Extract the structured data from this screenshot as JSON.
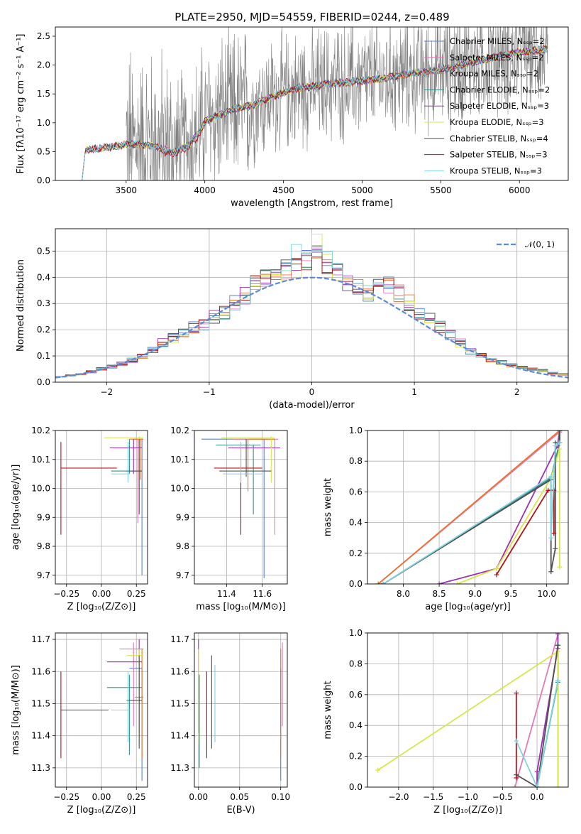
{
  "figure": {
    "title": "PLATE=2950, MJD=54559, FIBERID=0244, z=0.489"
  },
  "chart_data": [
    {
      "id": "spectrum",
      "type": "line",
      "xlabel": "wavelength [Angstrom, rest frame]",
      "ylabel": "Flux [fλ10⁻¹⁷ erg cm⁻² s⁻¹ A⁻¹]",
      "xlim": [
        3050,
        6310
      ],
      "ylim": [
        0,
        2.66
      ],
      "xticks": [
        3500,
        4000,
        4500,
        5000,
        5500,
        6000
      ],
      "yticks": [
        0.0,
        0.5,
        1.0,
        1.5,
        2.0,
        2.5
      ],
      "grid": false,
      "legend_position": "right",
      "legend": [
        {
          "text": "Chabrier MILES, Nₛₛₚ=2",
          "color": "#5b7fd0"
        },
        {
          "text": "Salpeter MILES, Nₛₛₚ=2",
          "color": "#e07ab8"
        },
        {
          "text": "Kroupa MILES, Nₛₛₚ=2",
          "color": "#e8752d"
        },
        {
          "text": "Chabrier ELODIE, Nₛₛₚ=2",
          "color": "#3a8f8a"
        },
        {
          "text": "Salpeter ELODIE, Nₛₛₚ=3",
          "color": "#9b30b0"
        },
        {
          "text": "Kroupa ELODIE, Nₛₛₚ=3",
          "color": "#d8e64a"
        },
        {
          "text": "Chabrier STELIB, Nₛₛₚ=4",
          "color": "#505050"
        },
        {
          "text": "Salpeter STELIB, Nₛₛₚ=3",
          "color": "#b01515"
        },
        {
          "text": "Kroupa STELIB, Nₛₛₚ=3",
          "color": "#7fd4e0"
        }
      ],
      "model_continuum": {
        "x": [
          3220,
          3240,
          3300,
          3400,
          3500,
          3600,
          3700,
          3800,
          3900,
          3950,
          4000,
          4100,
          4200,
          4300,
          4400,
          4500,
          4600,
          4700,
          4800,
          4900,
          5000,
          5100,
          5200,
          5300,
          5400,
          5500,
          5600,
          5700,
          5800,
          5900,
          6000,
          6100,
          6180
        ],
        "y": [
          0.0,
          0.52,
          0.55,
          0.58,
          0.62,
          0.63,
          0.58,
          0.48,
          0.62,
          0.8,
          1.02,
          1.15,
          1.25,
          1.3,
          1.42,
          1.52,
          1.6,
          1.63,
          1.68,
          1.7,
          1.73,
          1.76,
          1.8,
          1.85,
          1.88,
          1.92,
          1.97,
          2.05,
          2.1,
          2.18,
          2.22,
          2.25,
          2.28
        ]
      },
      "data_trace": {
        "color": "#808080",
        "x_range": [
          3500,
          6180
        ],
        "noise_level": "high"
      }
    },
    {
      "id": "residuals",
      "type": "histogram",
      "xlabel": "(data-model)/error",
      "ylabel": "Normed distribution",
      "xlim": [
        -2.5,
        2.5
      ],
      "ylim": [
        0,
        0.585
      ],
      "xticks": [
        -2,
        -1,
        0,
        1,
        2
      ],
      "yticks": [
        0.0,
        0.1,
        0.2,
        0.3,
        0.4,
        0.5
      ],
      "grid": true,
      "legend_position": "top-right",
      "legend": [
        {
          "text": "𝒩(0, 1)",
          "color": "#5b8bd6",
          "style": "dashed"
        }
      ],
      "bin_width": 0.1,
      "envelope_bins": [
        -2.5,
        -2.4,
        -2.3,
        -2.2,
        -2.1,
        -2.0,
        -1.9,
        -1.8,
        -1.7,
        -1.6,
        -1.5,
        -1.4,
        -1.3,
        -1.2,
        -1.1,
        -1.0,
        -0.9,
        -0.8,
        -0.7,
        -0.6,
        -0.5,
        -0.4,
        -0.3,
        -0.2,
        -0.1,
        0.0,
        0.1,
        0.2,
        0.3,
        0.4,
        0.5,
        0.6,
        0.7,
        0.8,
        0.9,
        1.0,
        1.1,
        1.2,
        1.3,
        1.4,
        1.5,
        1.6,
        1.7,
        1.8,
        1.9,
        2.0,
        2.1,
        2.2,
        2.3,
        2.4
      ],
      "envelope_values": [
        0.02,
        0.025,
        0.03,
        0.04,
        0.05,
        0.06,
        0.07,
        0.085,
        0.1,
        0.12,
        0.15,
        0.17,
        0.19,
        0.21,
        0.22,
        0.25,
        0.27,
        0.3,
        0.33,
        0.37,
        0.39,
        0.41,
        0.43,
        0.44,
        0.46,
        0.47,
        0.45,
        0.42,
        0.38,
        0.36,
        0.34,
        0.36,
        0.37,
        0.34,
        0.3,
        0.27,
        0.24,
        0.21,
        0.18,
        0.15,
        0.12,
        0.1,
        0.085,
        0.075,
        0.065,
        0.055,
        0.05,
        0.045,
        0.035,
        0.03
      ]
    },
    {
      "id": "z-vs-age",
      "type": "errorbar",
      "xlabel": "Z [log₁₀(Z/Z⊙)]",
      "ylabel": "age  [log₁₀(age/yr)]",
      "xlim": [
        -0.33,
        0.33
      ],
      "ylim": [
        9.67,
        10.2
      ],
      "xticks": [
        -0.25,
        0.0,
        0.25
      ],
      "xtick_labels": [
        "−0.25",
        "0.00",
        "0.25"
      ],
      "yticks": [
        9.7,
        9.8,
        9.9,
        10.0,
        10.1,
        10.2
      ],
      "grid": true,
      "points": [
        {
          "x": 0.29,
          "xlo": 0.29,
          "xhi": 0.29,
          "y": 10.0,
          "ylo": 9.7,
          "yhi": 10.17,
          "color": "#5b7fd0"
        },
        {
          "x": 0.26,
          "xlo": 0.23,
          "xhi": 0.3,
          "y": 10.17,
          "ylo": 9.88,
          "yhi": 10.17,
          "color": "#e07ab8"
        },
        {
          "x": 0.28,
          "xlo": 0.2,
          "xhi": 0.3,
          "y": 10.17,
          "ylo": 10.03,
          "yhi": 10.17,
          "color": "#e8752d"
        },
        {
          "x": 0.2,
          "xlo": 0.07,
          "xhi": 0.29,
          "y": 10.06,
          "ylo": 10.05,
          "yhi": 10.17,
          "color": "#3a8f8a"
        },
        {
          "x": 0.23,
          "xlo": 0.06,
          "xhi": 0.29,
          "y": 10.14,
          "ylo": 10.05,
          "yhi": 10.17,
          "color": "#9b30b0"
        },
        {
          "x": 0.27,
          "xlo": 0.02,
          "xhi": 0.3,
          "y": 10.175,
          "ylo": 10.0,
          "yhi": 10.18,
          "color": "#d8e64a"
        },
        {
          "x": 0.27,
          "xlo": 0.18,
          "xhi": 0.29,
          "y": 10.06,
          "ylo": 9.91,
          "yhi": 10.17,
          "color": "#505050"
        },
        {
          "x": -0.29,
          "xlo": -0.29,
          "xhi": 0.11,
          "y": 10.07,
          "ylo": 9.84,
          "yhi": 10.16,
          "color": "#b01515"
        },
        {
          "x": 0.19,
          "xlo": 0.07,
          "xhi": 0.2,
          "y": 10.05,
          "ylo": 10.02,
          "yhi": 10.16,
          "color": "#7fd4e0"
        }
      ]
    },
    {
      "id": "mass-vs-age",
      "type": "errorbar",
      "xlabel": "mass [log₁₀(M/M⊙)]",
      "ylabel": "",
      "xlim": [
        11.22,
        11.74
      ],
      "ylim": [
        9.67,
        10.2
      ],
      "xticks": [
        11.4,
        11.6
      ],
      "yticks": [
        9.7,
        9.8,
        9.9,
        10.0,
        10.1,
        10.2
      ],
      "grid": true,
      "points": [
        {
          "x": 11.61,
          "xlo": 11.26,
          "xhi": 11.61,
          "y": 10.17,
          "ylo": 9.69,
          "yhi": 10.17,
          "color": "#5b7fd0"
        },
        {
          "x": 11.67,
          "xlo": 11.43,
          "xhi": 11.69,
          "y": 10.17,
          "ylo": 9.84,
          "yhi": 10.17,
          "color": "#e07ab8"
        },
        {
          "x": 11.52,
          "xlo": 11.52,
          "xhi": 11.67,
          "y": 10.17,
          "ylo": 9.99,
          "yhi": 10.17,
          "color": "#e8752d"
        },
        {
          "x": 11.55,
          "xlo": 11.34,
          "xhi": 11.59,
          "y": 10.15,
          "ylo": 9.91,
          "yhi": 10.15,
          "color": "#3a8f8a"
        },
        {
          "x": 11.62,
          "xlo": 11.41,
          "xhi": 11.7,
          "y": 10.14,
          "ylo": 10.14,
          "yhi": 10.14,
          "color": "#9b30b0"
        },
        {
          "x": 11.65,
          "xlo": 11.37,
          "xhi": 11.67,
          "y": 10.175,
          "ylo": 10.02,
          "yhi": 10.18,
          "color": "#d8e64a"
        },
        {
          "x": 11.51,
          "xlo": 11.36,
          "xhi": 11.65,
          "y": 10.06,
          "ylo": 10.04,
          "yhi": 10.17,
          "color": "#505050"
        },
        {
          "x": 11.48,
          "xlo": 11.33,
          "xhi": 11.6,
          "y": 10.07,
          "ylo": 9.84,
          "yhi": 10.16,
          "color": "#b01515"
        },
        {
          "x": 11.48,
          "xlo": 11.38,
          "xhi": 11.6,
          "y": 10.05,
          "ylo": 10.02,
          "yhi": 10.16,
          "color": "#7fd4e0"
        }
      ]
    },
    {
      "id": "age-vs-weight",
      "type": "line",
      "xlabel": "age  [log₁₀(age/yr)]",
      "ylabel": "mass weight",
      "xlim": [
        7.5,
        10.3
      ],
      "ylim": [
        0,
        1.0
      ],
      "xticks": [
        8.0,
        8.5,
        9.0,
        9.5,
        10.0
      ],
      "yticks": [
        0.0,
        0.2,
        0.4,
        0.6,
        0.8,
        1.0
      ],
      "grid": true,
      "series": [
        {
          "color": "#5b7fd0",
          "x": [
            7.72,
            10.06,
            10.18,
            10.18
          ],
          "y": [
            0.0,
            0.69,
            0.92,
            1.0
          ]
        },
        {
          "color": "#e07ab8",
          "x": [
            7.65,
            10.18,
            10.18
          ],
          "y": [
            0.0,
            0.99,
            1.0
          ]
        },
        {
          "color": "#e8752d",
          "x": [
            7.65,
            10.18,
            10.18
          ],
          "y": [
            0.0,
            1.0,
            1.0
          ]
        },
        {
          "color": "#3a8f8a",
          "x": [
            7.72,
            10.06,
            10.18,
            10.18
          ],
          "y": [
            0.0,
            0.69,
            0.92,
            1.0
          ]
        },
        {
          "color": "#9b30b0",
          "x": [
            8.5,
            9.3,
            10.15,
            10.18
          ],
          "y": [
            0.0,
            0.1,
            0.9,
            1.0
          ]
        },
        {
          "color": "#d8e64a",
          "x": [
            8.75,
            9.3,
            10.06,
            10.18,
            10.18
          ],
          "y": [
            0.0,
            0.1,
            0.69,
            0.88,
            0.11
          ]
        },
        {
          "color": "#505050",
          "x": [
            7.72,
            10.06,
            10.06,
            10.12,
            10.12,
            10.18,
            10.18
          ],
          "y": [
            0.0,
            0.68,
            0.08,
            0.23,
            0.92,
            0.92,
            1.0
          ]
        },
        {
          "color": "#b01515",
          "x": [
            9.3,
            10.02,
            10.1,
            10.1
          ],
          "y": [
            0.06,
            0.61,
            0.61,
            0.33
          ]
        },
        {
          "color": "#7fd4e0",
          "x": [
            7.72,
            10.06,
            10.06,
            10.12,
            10.18
          ],
          "y": [
            0.0,
            0.7,
            0.3,
            0.9,
            0.92
          ]
        }
      ]
    },
    {
      "id": "z-vs-mass",
      "type": "errorbar",
      "xlabel": "Z [log₁₀(Z/Z⊙)]",
      "ylabel": "mass [log₁₀(M/M⊙)]",
      "xlim": [
        -0.33,
        0.33
      ],
      "ylim": [
        11.24,
        11.72
      ],
      "xticks": [
        -0.25,
        0.0,
        0.25
      ],
      "xtick_labels": [
        "−0.25",
        "0.00",
        "0.25"
      ],
      "yticks": [
        11.3,
        11.4,
        11.5,
        11.6,
        11.7
      ],
      "grid": true,
      "points": [
        {
          "x": 0.29,
          "xlo": 0.2,
          "xhi": 0.29,
          "y": 11.61,
          "ylo": 11.26,
          "yhi": 11.61,
          "color": "#5b7fd0"
        },
        {
          "x": 0.23,
          "xlo": 0.13,
          "xhi": 0.3,
          "y": 11.67,
          "ylo": 11.43,
          "yhi": 11.69,
          "color": "#e07ab8"
        },
        {
          "x": 0.29,
          "xlo": 0.24,
          "xhi": 0.3,
          "y": 11.52,
          "ylo": 11.33,
          "yhi": 11.67,
          "color": "#e8752d"
        },
        {
          "x": 0.2,
          "xlo": 0.04,
          "xhi": 0.29,
          "y": 11.55,
          "ylo": 11.34,
          "yhi": 11.59,
          "color": "#3a8f8a"
        },
        {
          "x": 0.27,
          "xlo": 0.04,
          "xhi": 0.29,
          "y": 11.63,
          "ylo": 11.41,
          "yhi": 11.7,
          "color": "#9b30b0"
        },
        {
          "x": 0.27,
          "xlo": 0.18,
          "xhi": 0.3,
          "y": 11.65,
          "ylo": 11.37,
          "yhi": 11.67,
          "color": "#d8e64a"
        },
        {
          "x": 0.27,
          "xlo": 0.18,
          "xhi": 0.29,
          "y": 11.51,
          "ylo": 11.36,
          "yhi": 11.65,
          "color": "#505050"
        },
        {
          "x": -0.29,
          "xlo": -0.29,
          "xhi": 0.05,
          "y": 11.48,
          "ylo": 11.33,
          "yhi": 11.6,
          "color": "#b01515"
        },
        {
          "x": 0.19,
          "xlo": 0.07,
          "xhi": 0.2,
          "y": 11.48,
          "ylo": 11.38,
          "yhi": 11.6,
          "color": "#7fd4e0"
        }
      ]
    },
    {
      "id": "ebv-vs-mass",
      "type": "errorbar",
      "xlabel": "E(B-V)",
      "ylabel": "",
      "xlim": [
        -0.005,
        0.108
      ],
      "ylim": [
        11.24,
        11.72
      ],
      "xticks": [
        0.0,
        0.05,
        0.1
      ],
      "xtick_labels": [
        "0.00",
        "0.05",
        "0.10"
      ],
      "yticks": [
        11.3,
        11.4,
        11.5,
        11.6,
        11.7
      ],
      "grid": true,
      "points": [
        {
          "x": 0.1,
          "y": 11.45,
          "ylo": 11.26,
          "yhi": 11.61,
          "color": "#5b7fd0"
        },
        {
          "x": 0.102,
          "y": 11.5,
          "ylo": 11.43,
          "yhi": 11.69,
          "color": "#e07ab8"
        },
        {
          "x": 0.1,
          "y": 11.5,
          "ylo": 11.33,
          "yhi": 11.67,
          "color": "#e8752d"
        },
        {
          "x": 0.001,
          "y": 11.45,
          "ylo": 11.3,
          "yhi": 11.59,
          "color": "#3a8f8a"
        },
        {
          "x": 0.0,
          "y": 11.55,
          "ylo": 11.41,
          "yhi": 11.7,
          "color": "#9b30b0"
        },
        {
          "x": 0.0,
          "y": 11.55,
          "ylo": 11.37,
          "yhi": 11.67,
          "color": "#d8e64a"
        },
        {
          "x": 0.016,
          "y": 11.5,
          "ylo": 11.36,
          "yhi": 11.65,
          "color": "#505050"
        },
        {
          "x": 0.01,
          "y": 11.45,
          "ylo": 11.33,
          "yhi": 11.6,
          "color": "#b01515"
        },
        {
          "x": 0.02,
          "y": 11.5,
          "ylo": 11.38,
          "yhi": 11.62,
          "color": "#7fd4e0"
        }
      ]
    },
    {
      "id": "z-vs-weight",
      "type": "line",
      "xlabel": "Z [log₁₀(Z/Z⊙)]",
      "ylabel": "mass weight",
      "xlim": [
        -2.45,
        0.45
      ],
      "ylim": [
        0,
        1.0
      ],
      "xticks": [
        -2.0,
        -1.5,
        -1.0,
        -0.5,
        0.0
      ],
      "xtick_labels": [
        "−2.0",
        "−1.5",
        "−1.0",
        "−0.5",
        "0.0"
      ],
      "yticks": [
        0.0,
        0.2,
        0.4,
        0.6,
        0.8,
        1.0
      ],
      "grid": true,
      "series": [
        {
          "color": "#5b7fd0",
          "x": [
            0.0,
            0.3,
            0.3
          ],
          "y": [
            0.0,
            0.68,
            1.0
          ]
        },
        {
          "color": "#e07ab8",
          "x": [
            -0.32,
            0.3,
            0.3
          ],
          "y": [
            0.0,
            0.99,
            1.0
          ]
        },
        {
          "color": "#e8752d",
          "x": [
            0.3,
            0.3
          ],
          "y": [
            0.0,
            1.0
          ]
        },
        {
          "color": "#3a8f8a",
          "x": [
            0.0,
            0.3,
            0.3
          ],
          "y": [
            0.0,
            0.68,
            0.92
          ]
        },
        {
          "color": "#9b30b0",
          "x": [
            0.0,
            0.0,
            0.3,
            0.3
          ],
          "y": [
            0.0,
            0.1,
            0.9,
            1.0
          ]
        },
        {
          "color": "#d8e64a",
          "x": [
            -2.3,
            0.3,
            0.3
          ],
          "y": [
            0.11,
            0.88,
            0.0
          ]
        },
        {
          "color": "#505050",
          "x": [
            -0.3,
            0.0,
            0.3,
            0.3
          ],
          "y": [
            0.08,
            0.0,
            0.92,
            0.92
          ]
        },
        {
          "color": "#b01515",
          "x": [
            -0.3,
            -0.3
          ],
          "y": [
            0.06,
            0.61
          ]
        },
        {
          "color": "#7fd4e0",
          "x": [
            -0.3,
            0.0,
            0.3,
            0.3
          ],
          "y": [
            0.3,
            0.0,
            0.69,
            0.69
          ]
        }
      ]
    }
  ]
}
